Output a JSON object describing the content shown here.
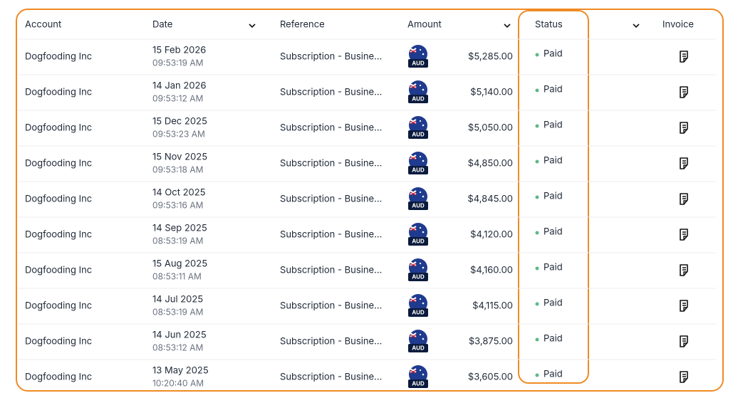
{
  "table": {
    "columns": [
      "Account",
      "Date",
      "Reference",
      "Amount",
      "Status",
      "Invoice"
    ],
    "rows": [
      {
        "account": "Dogfooding Inc",
        "date": "15 Feb 2026",
        "time": "09:53:19 AM",
        "reference": "Subscription - Busine...",
        "currency": "AUD",
        "amount": "$5,285.00",
        "status": "Paid"
      },
      {
        "account": "Dogfooding Inc",
        "date": "14 Jan 2026",
        "time": "09:53:12 AM",
        "reference": "Subscription - Busine...",
        "currency": "AUD",
        "amount": "$5,140.00",
        "status": "Paid"
      },
      {
        "account": "Dogfooding Inc",
        "date": "15 Dec 2025",
        "time": "09:53:23 AM",
        "reference": "Subscription - Busine...",
        "currency": "AUD",
        "amount": "$5,050.00",
        "status": "Paid"
      },
      {
        "account": "Dogfooding Inc",
        "date": "15 Nov 2025",
        "time": "09:53:18 AM",
        "reference": "Subscription - Busine...",
        "currency": "AUD",
        "amount": "$4,850.00",
        "status": "Paid"
      },
      {
        "account": "Dogfooding Inc",
        "date": "14 Oct 2025",
        "time": "09:53:16 AM",
        "reference": "Subscription - Busine...",
        "currency": "AUD",
        "amount": "$4,845.00",
        "status": "Paid"
      },
      {
        "account": "Dogfooding Inc",
        "date": "14 Sep 2025",
        "time": "08:53:19 AM",
        "reference": "Subscription - Busine...",
        "currency": "AUD",
        "amount": "$4,120.00",
        "status": "Paid"
      },
      {
        "account": "Dogfooding Inc",
        "date": "15 Aug 2025",
        "time": "08:53:11 AM",
        "reference": "Subscription - Busine...",
        "currency": "AUD",
        "amount": "$4,160.00",
        "status": "Paid"
      },
      {
        "account": "Dogfooding Inc",
        "date": "14 Jul 2025",
        "time": "08:53:19 AM",
        "reference": "Subscription - Busine...",
        "currency": "AUD",
        "amount": "$4,115.00",
        "status": "Paid"
      },
      {
        "account": "Dogfooding Inc",
        "date": "14 Jun 2025",
        "time": "08:53:12 AM",
        "reference": "Subscription - Busine...",
        "currency": "AUD",
        "amount": "$3,875.00",
        "status": "Paid"
      },
      {
        "account": "Dogfooding Inc",
        "date": "13 May 2025",
        "time": "10:20:40 AM",
        "reference": "Subscription - Busine...",
        "currency": "AUD",
        "amount": "$3,605.00",
        "status": "Paid"
      }
    ]
  }
}
